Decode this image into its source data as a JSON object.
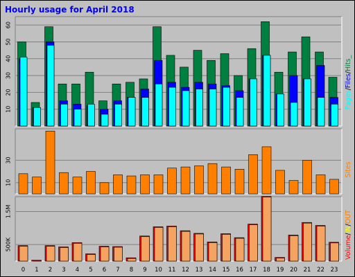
{
  "chart_data": [
    {
      "type": "bar",
      "title": "Hourly usage for April 2018",
      "categories": [
        "0",
        "1",
        "2",
        "3",
        "4",
        "5",
        "6",
        "7",
        "8",
        "9",
        "10",
        "11",
        "12",
        "13",
        "14",
        "15",
        "16",
        "17",
        "18",
        "19",
        "20",
        "21",
        "22",
        "23"
      ],
      "ylim": [
        0,
        65
      ],
      "yticks": [
        10,
        20,
        30,
        40,
        50,
        60
      ],
      "legend": {
        "position": "right",
        "labels": [
          "Pages",
          "Files",
          "Hits"
        ],
        "separator": "/",
        "suffix": "_"
      },
      "series": [
        {
          "name": "Hits",
          "color": "#008040",
          "values": [
            50,
            14,
            59,
            25,
            25,
            32,
            15,
            25,
            26,
            28,
            59,
            42,
            35,
            45,
            39,
            43,
            30,
            46,
            62,
            32,
            44,
            53,
            44,
            29
          ]
        },
        {
          "name": "Files",
          "color": "#0000ff",
          "values": [
            40,
            11,
            50,
            15,
            13,
            12,
            10,
            15,
            17,
            22,
            39,
            26,
            23,
            26,
            25,
            24,
            21,
            28,
            42,
            19,
            30,
            28,
            36,
            17
          ]
        },
        {
          "name": "Pages",
          "color": "#00ffff",
          "values": [
            41,
            11,
            48,
            13,
            10,
            13,
            7,
            13,
            17,
            17,
            25,
            23,
            21,
            22,
            22,
            23,
            17,
            28,
            42,
            19,
            14,
            28,
            17,
            13
          ]
        }
      ]
    },
    {
      "type": "bar",
      "ylim": [
        0,
        58
      ],
      "yticks": [
        10,
        30
      ],
      "legend": {
        "position": "right",
        "labels": [
          "Sites"
        ]
      },
      "series": [
        {
          "name": "Sites",
          "color": "#ff8000",
          "values": [
            18,
            15,
            56,
            19,
            15,
            20,
            10,
            17,
            16,
            17,
            17,
            23,
            24,
            25,
            27,
            24,
            22,
            35,
            42,
            21,
            12,
            30,
            17,
            13
          ]
        }
      ]
    },
    {
      "type": "bar",
      "ylim": [
        0,
        1950
      ],
      "yticks": [
        500,
        1500
      ],
      "ytick_labels": [
        "500K",
        "1.5M"
      ],
      "legend": {
        "position": "right",
        "labels": [
          "Volume",
          "IN",
          "OUT"
        ],
        "separator": "/"
      },
      "series": [
        {
          "name": "Volume",
          "color": "#ff0000",
          "values": [
            470,
            25,
            470,
            430,
            560,
            220,
            450,
            440,
            100,
            760,
            1040,
            1060,
            920,
            840,
            580,
            830,
            710,
            1120,
            1960,
            110,
            790,
            1170,
            1080,
            570
          ]
        },
        {
          "name": "OUT",
          "color": "#ffff00",
          "values": []
        }
      ]
    }
  ],
  "colors": {
    "hits": "#008040",
    "files": "#0000ff",
    "pages": "#00ffff",
    "sites": "#ff8000",
    "volume": "#ff0000",
    "in": "#ffff00",
    "out": "#ff8000",
    "title": "#0000ff",
    "background": "#c0c0c0"
  }
}
